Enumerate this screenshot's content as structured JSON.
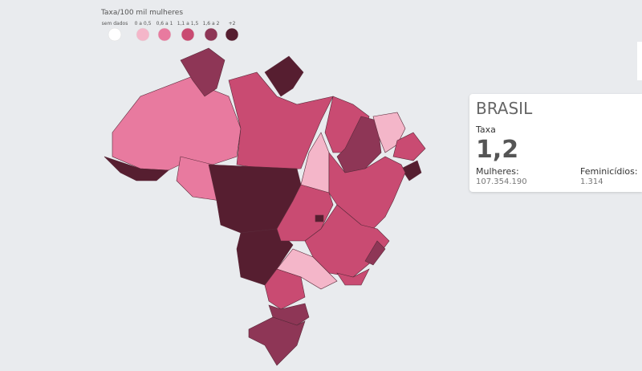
{
  "legend": {
    "title": "Taxa/100 mil mulheres",
    "items": [
      {
        "label": "sem dados",
        "color": "#ffffff"
      },
      {
        "label": "0 a 0,5",
        "color": "#f4b6c9"
      },
      {
        "label": "0,6 a 1",
        "color": "#e87a9f"
      },
      {
        "label": "1,1 a 1,5",
        "color": "#c94b72"
      },
      {
        "label": "1,6 a 2",
        "color": "#8e3656"
      },
      {
        "label": "+2",
        "color": "#561e30"
      }
    ]
  },
  "panel": {
    "title": "BRASIL",
    "rate_label": "Taxa",
    "rate": "1,2",
    "women_label": "Mulheres:",
    "women": "107.354.190",
    "cases_label": "Feminicídios:",
    "cases": "1.314"
  }
}
